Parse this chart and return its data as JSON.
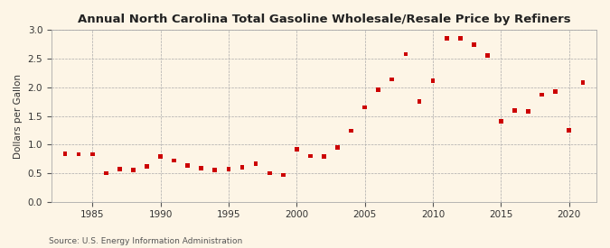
{
  "title": "Annual North Carolina Total Gasoline Wholesale/Resale Price by Refiners",
  "ylabel": "Dollars per Gallon",
  "source": "Source: U.S. Energy Information Administration",
  "background_color": "#fdf5e6",
  "marker_color": "#cc0000",
  "xlim": [
    1982,
    2022
  ],
  "ylim": [
    0.0,
    3.0
  ],
  "yticks": [
    0.0,
    0.5,
    1.0,
    1.5,
    2.0,
    2.5,
    3.0
  ],
  "xticks": [
    1985,
    1990,
    1995,
    2000,
    2005,
    2010,
    2015,
    2020
  ],
  "years": [
    1983,
    1984,
    1985,
    1986,
    1987,
    1988,
    1989,
    1990,
    1991,
    1992,
    1993,
    1994,
    1995,
    1996,
    1997,
    1998,
    1999,
    2000,
    2001,
    2002,
    2003,
    2004,
    2005,
    2006,
    2007,
    2008,
    2009,
    2010,
    2011,
    2012,
    2013,
    2014,
    2015,
    2016,
    2017,
    2018,
    2019,
    2020,
    2021
  ],
  "values": [
    0.84,
    0.83,
    0.83,
    0.5,
    0.57,
    0.55,
    0.62,
    0.79,
    0.72,
    0.63,
    0.59,
    0.56,
    0.57,
    0.6,
    0.66,
    0.5,
    0.47,
    0.92,
    0.8,
    0.79,
    0.95,
    1.24,
    1.65,
    1.96,
    2.14,
    2.58,
    1.75,
    2.11,
    2.85,
    2.86,
    2.74,
    2.55,
    1.4,
    1.6,
    1.58,
    1.87,
    1.92,
    1.25,
    2.09
  ]
}
